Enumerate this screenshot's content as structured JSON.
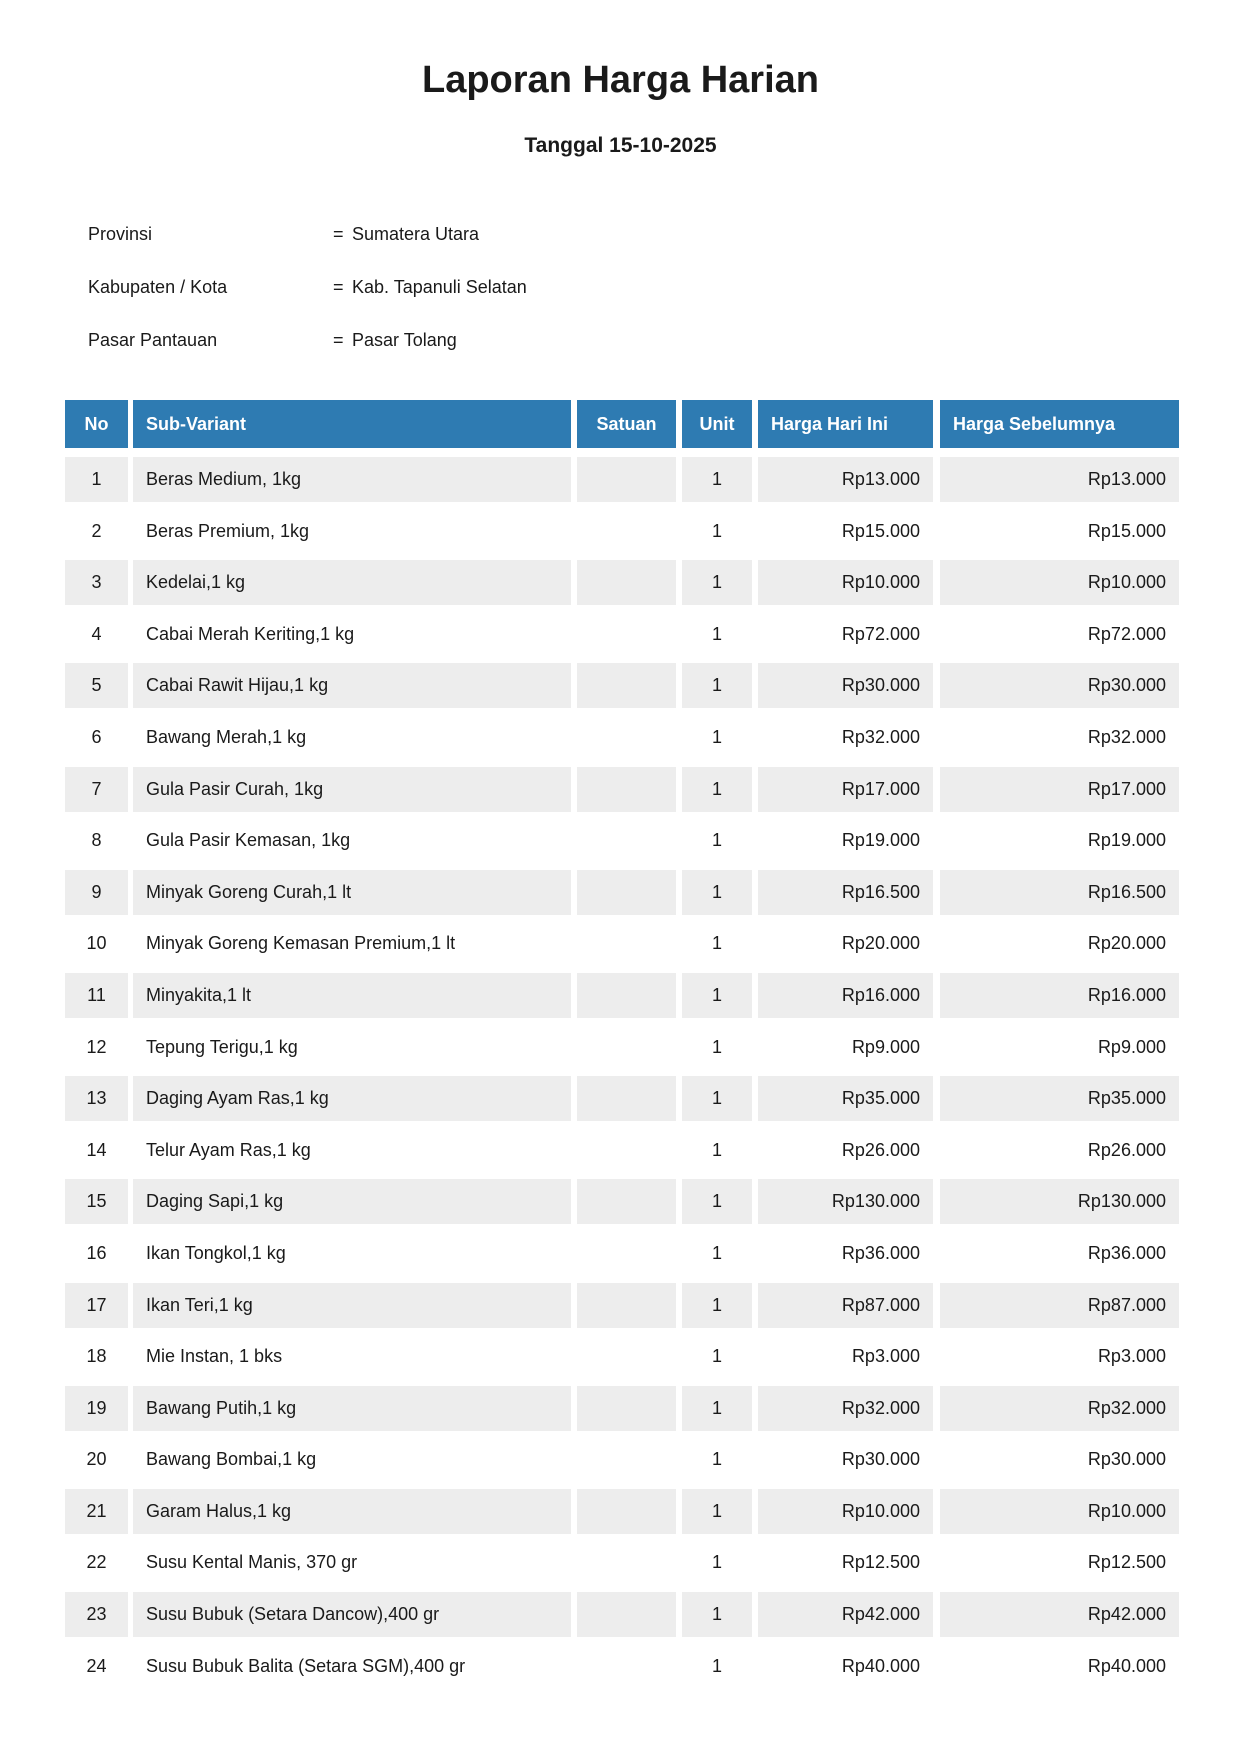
{
  "page": {
    "title": "Laporan Harga Harian",
    "subtitle": "Tanggal 15-10-2025"
  },
  "meta": {
    "equals_sign": "=",
    "fields": [
      {
        "label": "Provinsi",
        "value": "Sumatera Utara"
      },
      {
        "label": "Kabupaten / Kota",
        "value": "Kab. Tapanuli Selatan"
      },
      {
        "label": "Pasar Pantauan",
        "value": "Pasar Tolang"
      }
    ]
  },
  "table": {
    "columns": [
      "No",
      "Sub-Variant",
      "Satuan",
      "Unit",
      "Harga Hari Ini",
      "Harga Sebelumnya"
    ],
    "rows": [
      {
        "no": "1",
        "sub_variant": "Beras Medium, 1kg",
        "satuan": "",
        "unit": "1",
        "harga_hari_ini": "Rp13.000",
        "harga_sebelumnya": "Rp13.000"
      },
      {
        "no": "2",
        "sub_variant": "Beras Premium, 1kg",
        "satuan": "",
        "unit": "1",
        "harga_hari_ini": "Rp15.000",
        "harga_sebelumnya": "Rp15.000"
      },
      {
        "no": "3",
        "sub_variant": "Kedelai,1 kg",
        "satuan": "",
        "unit": "1",
        "harga_hari_ini": "Rp10.000",
        "harga_sebelumnya": "Rp10.000"
      },
      {
        "no": "4",
        "sub_variant": "Cabai Merah Keriting,1 kg",
        "satuan": "",
        "unit": "1",
        "harga_hari_ini": "Rp72.000",
        "harga_sebelumnya": "Rp72.000"
      },
      {
        "no": "5",
        "sub_variant": "Cabai Rawit Hijau,1 kg",
        "satuan": "",
        "unit": "1",
        "harga_hari_ini": "Rp30.000",
        "harga_sebelumnya": "Rp30.000"
      },
      {
        "no": "6",
        "sub_variant": "Bawang Merah,1 kg",
        "satuan": "",
        "unit": "1",
        "harga_hari_ini": "Rp32.000",
        "harga_sebelumnya": "Rp32.000"
      },
      {
        "no": "7",
        "sub_variant": "Gula Pasir Curah, 1kg",
        "satuan": "",
        "unit": "1",
        "harga_hari_ini": "Rp17.000",
        "harga_sebelumnya": "Rp17.000"
      },
      {
        "no": "8",
        "sub_variant": "Gula Pasir Kemasan, 1kg",
        "satuan": "",
        "unit": "1",
        "harga_hari_ini": "Rp19.000",
        "harga_sebelumnya": "Rp19.000"
      },
      {
        "no": "9",
        "sub_variant": "Minyak Goreng Curah,1 lt",
        "satuan": "",
        "unit": "1",
        "harga_hari_ini": "Rp16.500",
        "harga_sebelumnya": "Rp16.500"
      },
      {
        "no": "10",
        "sub_variant": "Minyak Goreng Kemasan Premium,1 lt",
        "satuan": "",
        "unit": "1",
        "harga_hari_ini": "Rp20.000",
        "harga_sebelumnya": "Rp20.000"
      },
      {
        "no": "11",
        "sub_variant": "Minyakita,1 lt",
        "satuan": "",
        "unit": "1",
        "harga_hari_ini": "Rp16.000",
        "harga_sebelumnya": "Rp16.000"
      },
      {
        "no": "12",
        "sub_variant": "Tepung Terigu,1 kg",
        "satuan": "",
        "unit": "1",
        "harga_hari_ini": "Rp9.000",
        "harga_sebelumnya": "Rp9.000"
      },
      {
        "no": "13",
        "sub_variant": "Daging Ayam Ras,1 kg",
        "satuan": "",
        "unit": "1",
        "harga_hari_ini": "Rp35.000",
        "harga_sebelumnya": "Rp35.000"
      },
      {
        "no": "14",
        "sub_variant": "Telur Ayam Ras,1 kg",
        "satuan": "",
        "unit": "1",
        "harga_hari_ini": "Rp26.000",
        "harga_sebelumnya": "Rp26.000"
      },
      {
        "no": "15",
        "sub_variant": "Daging Sapi,1 kg",
        "satuan": "",
        "unit": "1",
        "harga_hari_ini": "Rp130.000",
        "harga_sebelumnya": "Rp130.000"
      },
      {
        "no": "16",
        "sub_variant": "Ikan Tongkol,1 kg",
        "satuan": "",
        "unit": "1",
        "harga_hari_ini": "Rp36.000",
        "harga_sebelumnya": "Rp36.000"
      },
      {
        "no": "17",
        "sub_variant": "Ikan Teri,1 kg",
        "satuan": "",
        "unit": "1",
        "harga_hari_ini": "Rp87.000",
        "harga_sebelumnya": "Rp87.000"
      },
      {
        "no": "18",
        "sub_variant": "Mie Instan, 1 bks",
        "satuan": "",
        "unit": "1",
        "harga_hari_ini": "Rp3.000",
        "harga_sebelumnya": "Rp3.000"
      },
      {
        "no": "19",
        "sub_variant": "Bawang Putih,1 kg",
        "satuan": "",
        "unit": "1",
        "harga_hari_ini": "Rp32.000",
        "harga_sebelumnya": "Rp32.000"
      },
      {
        "no": "20",
        "sub_variant": "Bawang Bombai,1 kg",
        "satuan": "",
        "unit": "1",
        "harga_hari_ini": "Rp30.000",
        "harga_sebelumnya": "Rp30.000"
      },
      {
        "no": "21",
        "sub_variant": "Garam Halus,1 kg",
        "satuan": "",
        "unit": "1",
        "harga_hari_ini": "Rp10.000",
        "harga_sebelumnya": "Rp10.000"
      },
      {
        "no": "22",
        "sub_variant": "Susu Kental Manis, 370 gr",
        "satuan": "",
        "unit": "1",
        "harga_hari_ini": "Rp12.500",
        "harga_sebelumnya": "Rp12.500"
      },
      {
        "no": "23",
        "sub_variant": "Susu Bubuk (Setara Dancow),400 gr",
        "satuan": "",
        "unit": "1",
        "harga_hari_ini": "Rp42.000",
        "harga_sebelumnya": "Rp42.000"
      },
      {
        "no": "24",
        "sub_variant": "Susu Bubuk Balita (Setara SGM),400 gr",
        "satuan": "",
        "unit": "1",
        "harga_hari_ini": "Rp40.000",
        "harga_sebelumnya": "Rp40.000"
      }
    ]
  },
  "colors": {
    "header_bg": "#2e7bb2",
    "header_text": "#ffffff",
    "row_alt_bg": "#ededed",
    "row_bg": "#ffffff",
    "body_text": "#1a1a1a"
  }
}
